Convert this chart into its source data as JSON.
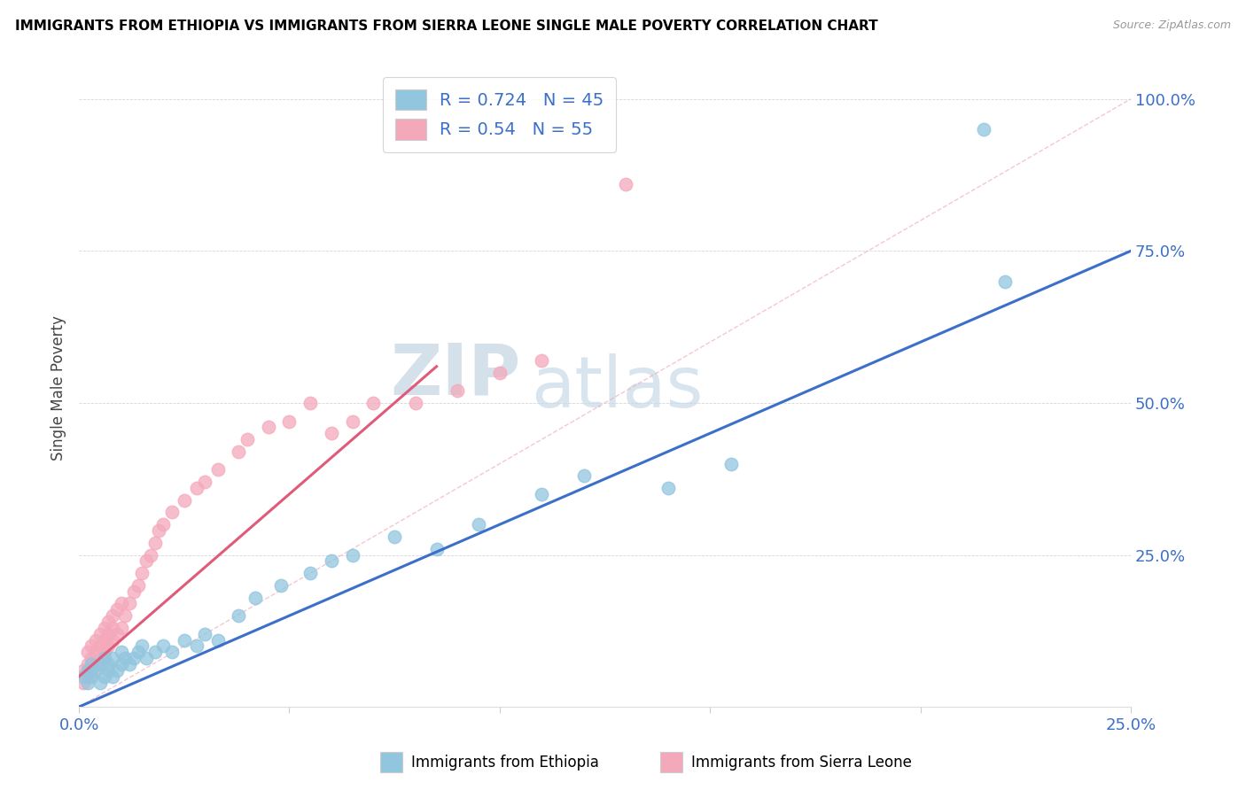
{
  "title": "IMMIGRANTS FROM ETHIOPIA VS IMMIGRANTS FROM SIERRA LEONE SINGLE MALE POVERTY CORRELATION CHART",
  "source": "Source: ZipAtlas.com",
  "ylabel": "Single Male Poverty",
  "xlim": [
    0.0,
    0.25
  ],
  "ylim": [
    0.0,
    1.05
  ],
  "legend_label1": "Immigrants from Ethiopia",
  "legend_label2": "Immigrants from Sierra Leone",
  "R1": 0.724,
  "N1": 45,
  "R2": 0.54,
  "N2": 55,
  "color1": "#92C5DE",
  "color2": "#F4A9BB",
  "line_color1": "#3B6FC9",
  "line_color2": "#E05A7A",
  "background_color": "#ffffff",
  "scatter1_x": [
    0.001,
    0.002,
    0.002,
    0.003,
    0.003,
    0.004,
    0.005,
    0.005,
    0.006,
    0.006,
    0.007,
    0.007,
    0.008,
    0.008,
    0.009,
    0.01,
    0.01,
    0.011,
    0.012,
    0.013,
    0.014,
    0.015,
    0.016,
    0.018,
    0.02,
    0.022,
    0.025,
    0.028,
    0.03,
    0.033,
    0.038,
    0.042,
    0.048,
    0.055,
    0.06,
    0.065,
    0.075,
    0.085,
    0.095,
    0.11,
    0.12,
    0.14,
    0.155,
    0.215,
    0.22
  ],
  "scatter1_y": [
    0.05,
    0.06,
    0.04,
    0.05,
    0.07,
    0.06,
    0.04,
    0.07,
    0.05,
    0.08,
    0.06,
    0.07,
    0.05,
    0.08,
    0.06,
    0.07,
    0.09,
    0.08,
    0.07,
    0.08,
    0.09,
    0.1,
    0.08,
    0.09,
    0.1,
    0.09,
    0.11,
    0.1,
    0.12,
    0.11,
    0.15,
    0.18,
    0.2,
    0.22,
    0.24,
    0.25,
    0.28,
    0.26,
    0.3,
    0.35,
    0.38,
    0.36,
    0.4,
    0.95,
    0.7
  ],
  "scatter2_x": [
    0.001,
    0.001,
    0.002,
    0.002,
    0.002,
    0.003,
    0.003,
    0.003,
    0.004,
    0.004,
    0.004,
    0.005,
    0.005,
    0.005,
    0.006,
    0.006,
    0.006,
    0.007,
    0.007,
    0.007,
    0.008,
    0.008,
    0.008,
    0.009,
    0.009,
    0.01,
    0.01,
    0.011,
    0.012,
    0.013,
    0.014,
    0.015,
    0.016,
    0.017,
    0.018,
    0.019,
    0.02,
    0.022,
    0.025,
    0.028,
    0.03,
    0.033,
    0.038,
    0.04,
    0.045,
    0.05,
    0.055,
    0.06,
    0.065,
    0.07,
    0.08,
    0.09,
    0.1,
    0.11,
    0.13
  ],
  "scatter2_y": [
    0.04,
    0.06,
    0.05,
    0.07,
    0.09,
    0.06,
    0.08,
    0.1,
    0.07,
    0.09,
    0.11,
    0.08,
    0.1,
    0.12,
    0.09,
    0.11,
    0.13,
    0.1,
    0.12,
    0.14,
    0.11,
    0.13,
    0.15,
    0.12,
    0.16,
    0.13,
    0.17,
    0.15,
    0.17,
    0.19,
    0.2,
    0.22,
    0.24,
    0.25,
    0.27,
    0.29,
    0.3,
    0.32,
    0.34,
    0.36,
    0.37,
    0.39,
    0.42,
    0.44,
    0.46,
    0.47,
    0.5,
    0.45,
    0.47,
    0.5,
    0.5,
    0.52,
    0.55,
    0.57,
    0.86
  ],
  "trendline1_x": [
    0.0,
    0.25
  ],
  "trendline1_y": [
    0.0,
    0.75
  ],
  "trendline2_x": [
    0.0,
    0.085
  ],
  "trendline2_y": [
    0.05,
    0.56
  ],
  "refline_x": [
    0.0,
    0.25
  ],
  "refline_y": [
    0.0,
    1.0
  ]
}
